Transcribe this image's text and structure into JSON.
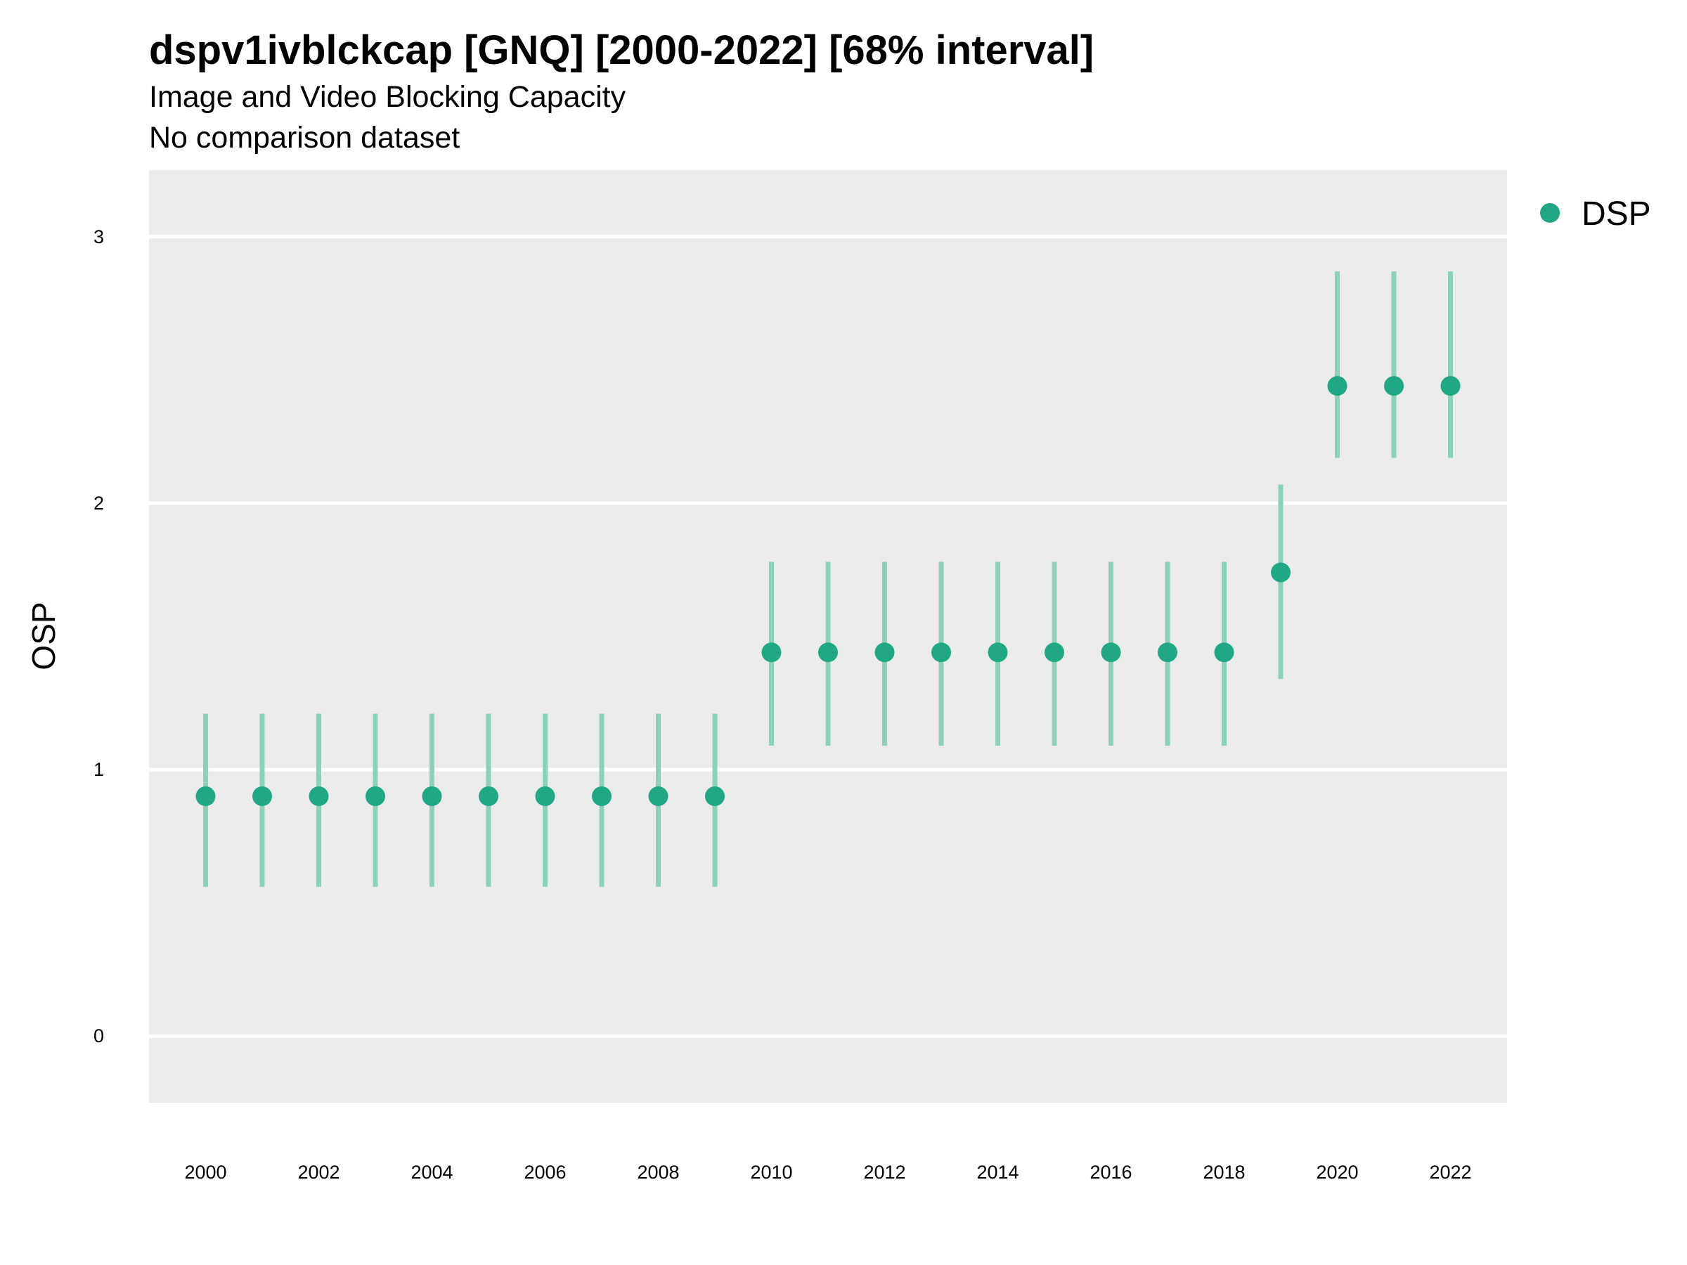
{
  "chart_data": {
    "type": "scatter",
    "title": "dspv1ivblckcap [GNQ] [2000-2022] [68% interval]",
    "subtitle": "Image and Video Blocking Capacity",
    "note": "No comparison dataset",
    "ylabel": "OSP",
    "xlabel": "",
    "xlim": [
      1999,
      2023
    ],
    "ylim": [
      -0.25,
      3.25
    ],
    "x_ticks": [
      2000,
      2002,
      2004,
      2006,
      2008,
      2010,
      2012,
      2014,
      2016,
      2018,
      2020,
      2022
    ],
    "y_ticks": [
      0,
      1,
      2,
      3
    ],
    "grid": true,
    "legend_position": "top-right",
    "series": [
      {
        "name": "DSP",
        "color": "#1fa883",
        "interval_color": "#8fd0bb",
        "x": [
          2000,
          2001,
          2002,
          2003,
          2004,
          2005,
          2006,
          2007,
          2008,
          2009,
          2010,
          2011,
          2012,
          2013,
          2014,
          2015,
          2016,
          2017,
          2018,
          2019,
          2020,
          2021,
          2022
        ],
        "y": [
          0.9,
          0.9,
          0.9,
          0.9,
          0.9,
          0.9,
          0.9,
          0.9,
          0.9,
          0.9,
          1.44,
          1.44,
          1.44,
          1.44,
          1.44,
          1.44,
          1.44,
          1.44,
          1.44,
          1.74,
          2.44,
          2.44,
          2.44
        ],
        "lower": [
          0.56,
          0.56,
          0.56,
          0.56,
          0.56,
          0.56,
          0.56,
          0.56,
          0.56,
          0.56,
          1.09,
          1.09,
          1.09,
          1.09,
          1.09,
          1.09,
          1.09,
          1.09,
          1.09,
          1.34,
          2.17,
          2.17,
          2.17
        ],
        "upper": [
          1.21,
          1.21,
          1.21,
          1.21,
          1.21,
          1.21,
          1.21,
          1.21,
          1.21,
          1.21,
          1.78,
          1.78,
          1.78,
          1.78,
          1.78,
          1.78,
          1.78,
          1.78,
          1.78,
          2.07,
          2.87,
          2.87,
          2.87
        ]
      }
    ]
  }
}
